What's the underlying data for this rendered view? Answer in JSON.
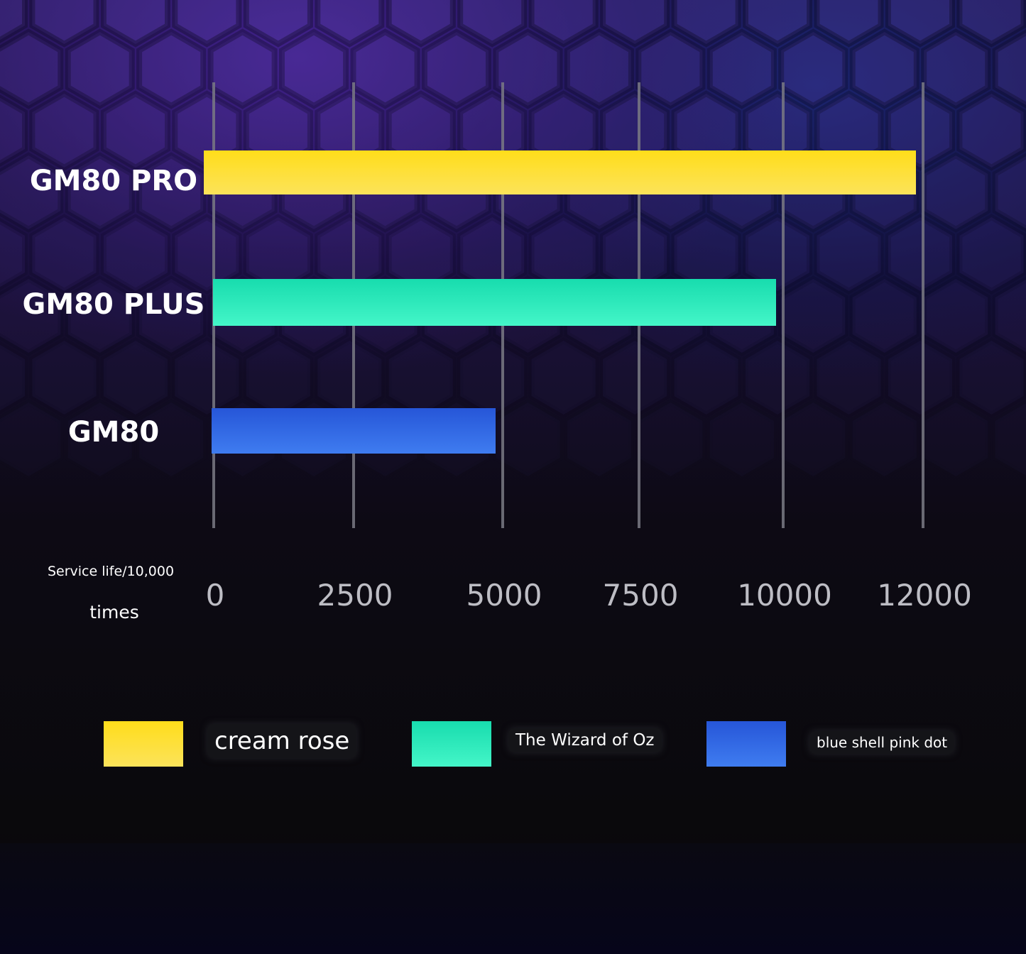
{
  "chart_data": {
    "type": "bar",
    "orientation": "horizontal",
    "categories": [
      "GM80 PRO",
      "GM80 PLUS",
      "GM80"
    ],
    "values": [
      12000,
      10000,
      5000
    ],
    "colors": [
      "#ffd81f",
      "#2ee8bb",
      "#2f66e0"
    ],
    "x_ticks": [
      "0",
      "2500",
      "5000",
      "7500",
      "10000",
      "12000"
    ],
    "xlim": [
      0,
      12000
    ],
    "xlabel_line1": "Service life/10,000",
    "xlabel_line2": "times",
    "grid": true,
    "legend": {
      "placement": "bottom",
      "entries": [
        {
          "label": "cream rose",
          "color": "#ffd81f"
        },
        {
          "label": "The Wizard of Oz",
          "color": "#2ee8bb"
        },
        {
          "label": "blue shell pink dot",
          "color": "#2f66e0"
        }
      ]
    }
  }
}
